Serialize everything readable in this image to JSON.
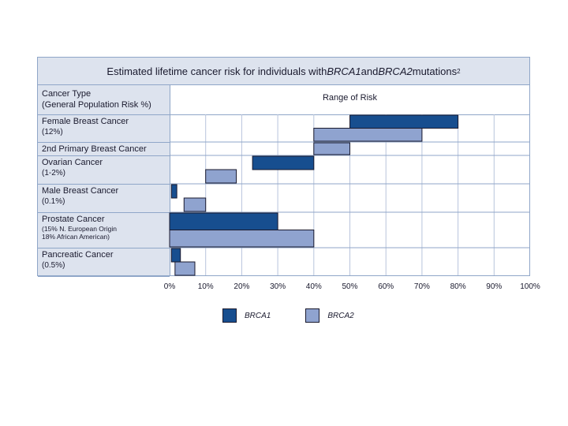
{
  "chart_data": {
    "type": "bar",
    "orientation": "horizontal-range",
    "title_prefix": "Estimated lifetime cancer risk for individuals with ",
    "title_brca1": "BRCA1",
    "title_and": " and ",
    "title_brca2": "BRCA2",
    "title_suffix": " mutations",
    "title_sup": "2",
    "header_left_line1": "Cancer Type",
    "header_left_line2": "(General Population Risk %)",
    "header_right": "Range of Risk",
    "xlim": [
      0,
      100
    ],
    "x_ticks": [
      "0%",
      "10%",
      "20%",
      "30%",
      "40%",
      "50%",
      "60%",
      "70%",
      "80%",
      "90%",
      "100%"
    ],
    "categories": [
      {
        "name": "Female Breast Cancer",
        "sub": "(12%)"
      },
      {
        "name": "2nd Primary Breast Cancer",
        "sub": ""
      },
      {
        "name": "Ovarian Cancer",
        "sub": "(1-2%)"
      },
      {
        "name": "Male Breast Cancer",
        "sub": "(0.1%)"
      },
      {
        "name": "Prostate Cancer",
        "sub": "(15% N. European Origin",
        "sub2": "18% African American)"
      },
      {
        "name": "Pancreatic Cancer",
        "sub": "(0.5%)"
      }
    ],
    "series": [
      {
        "name": "BRCA1",
        "color": "#174e8f",
        "ranges": [
          [
            50,
            80
          ],
          null,
          [
            23,
            40
          ],
          [
            0.5,
            2
          ],
          [
            0,
            30
          ],
          [
            0.5,
            3
          ]
        ]
      },
      {
        "name": "BRCA2",
        "color": "#8fa3cf",
        "ranges": [
          [
            40,
            70
          ],
          [
            40,
            50
          ],
          [
            10,
            18.5
          ],
          [
            4,
            10
          ],
          [
            0,
            40
          ],
          [
            1.5,
            7
          ]
        ]
      }
    ],
    "legend": [
      "BRCA1",
      "BRCA2"
    ]
  }
}
